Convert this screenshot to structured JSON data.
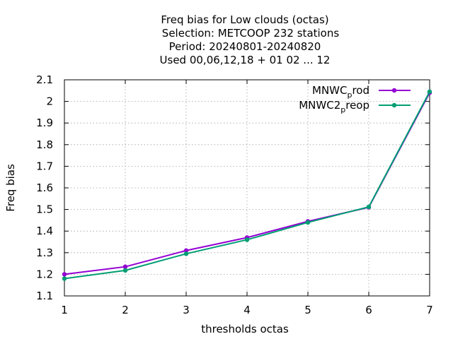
{
  "chart_data": {
    "type": "line",
    "title_lines": [
      "Freq bias  for Low clouds (octas)",
      "Selection: METCOOP    232 stations",
      "Period: 20240801-20240820",
      "Used  00,06,12,18  + 01 02 ... 12"
    ],
    "xlabel": "thresholds octas",
    "ylabel": "Freq bias",
    "x": [
      1,
      2,
      3,
      4,
      5,
      6,
      7
    ],
    "xlim": [
      1,
      7
    ],
    "ylim": [
      1.1,
      2.1
    ],
    "xticks": [
      "1",
      "2",
      "3",
      "4",
      "5",
      "6",
      "7"
    ],
    "yticks": [
      "1.1",
      "1.2",
      "1.3",
      "1.4",
      "1.5",
      "1.6",
      "1.7",
      "1.8",
      "1.9",
      "2",
      "2.1"
    ],
    "grid": true,
    "legend_position": "top-right",
    "series": [
      {
        "name": "MNWC_prod",
        "legend_main": "MNWC",
        "legend_sub": "p",
        "legend_tail": "rod",
        "color": "#9400d3",
        "values": [
          1.2,
          1.235,
          1.31,
          1.37,
          1.445,
          1.51,
          2.04
        ]
      },
      {
        "name": "MNWC2_preop",
        "legend_main": "MNWC2",
        "legend_sub": "p",
        "legend_tail": "reop",
        "color": "#009e73",
        "values": [
          1.18,
          1.218,
          1.295,
          1.36,
          1.44,
          1.512,
          2.045
        ]
      }
    ]
  }
}
